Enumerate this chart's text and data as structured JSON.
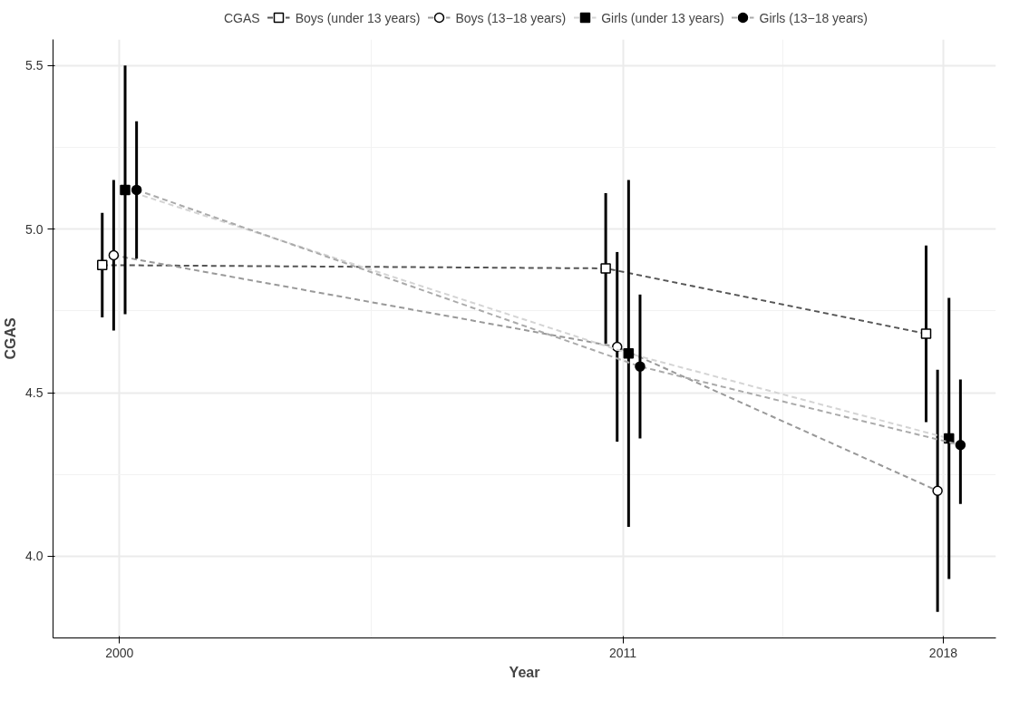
{
  "chart_data": {
    "type": "line",
    "xlabel": "Year",
    "ylabel": "CGAS",
    "legend_title": "CGAS",
    "legend": "top",
    "xlim": [
      1998.55,
      2019.15
    ],
    "xticks": [
      2000,
      2011,
      2018
    ],
    "ylim": [
      3.75,
      5.58
    ],
    "yticks": [
      {
        "value": 4,
        "label": "4.0"
      },
      4.5,
      {
        "value": 5,
        "label": "5.0"
      },
      5.5
    ],
    "grid": true,
    "line_style": "dashed",
    "series": [
      {
        "name": "Boys (under 13 years)",
        "color": "#555555",
        "marker": "square",
        "colors": [
          "#ffffff",
          "#ffffff",
          "#ffffff"
        ],
        "x": [
          1999.625,
          2010.625,
          2017.625
        ],
        "values": [
          4.89,
          4.88,
          4.68
        ],
        "errors": [
          [
            4.73,
            5.05
          ],
          [
            4.65,
            5.11
          ],
          [
            4.41,
            4.95
          ]
        ]
      },
      {
        "name": "Boys (13−18 years)",
        "color": "#999999",
        "marker": "circle",
        "colors": [
          "#ffffff",
          "#ffffff",
          "#ffffff"
        ],
        "x": [
          1999.875,
          2010.875,
          2017.875
        ],
        "values": [
          4.92,
          4.64,
          4.2
        ],
        "errors": [
          [
            4.69,
            5.15
          ],
          [
            4.35,
            4.93
          ],
          [
            3.83,
            4.57
          ]
        ]
      },
      {
        "name": "Girls (under 13 years)",
        "color": "#d4d4d4",
        "marker": "square",
        "colors": [
          "#000000",
          "#000000",
          "#000000"
        ],
        "x": [
          2000.125,
          2011.125,
          2018.125
        ],
        "values": [
          5.12,
          4.62,
          4.36
        ],
        "errors": [
          [
            4.74,
            5.5
          ],
          [
            4.09,
            5.15
          ],
          [
            3.93,
            4.79
          ]
        ]
      },
      {
        "name": "Girls (13−18 years)",
        "color": "#aaaaaa",
        "marker": "circle",
        "colors": [
          "#000000",
          "#000000",
          "#000000"
        ],
        "x": [
          2000.375,
          2011.375,
          2018.375
        ],
        "values": [
          5.12,
          4.58,
          4.34
        ],
        "errors": [
          [
            4.91,
            5.33
          ],
          [
            4.36,
            4.8
          ],
          [
            4.16,
            4.54
          ]
        ]
      }
    ]
  }
}
